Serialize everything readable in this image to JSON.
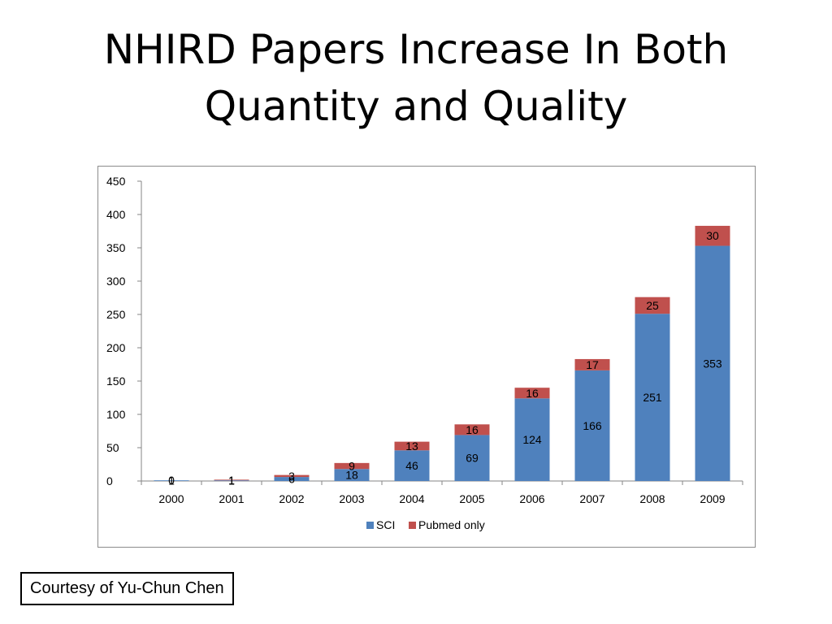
{
  "slide": {
    "title_line1": "NHIRD Papers Increase In Both",
    "title_line2": "Quantity and Quality",
    "credit": "Courtesy of Yu-Chun Chen"
  },
  "chart_data": {
    "type": "bar",
    "stacked": true,
    "title": "",
    "xlabel": "",
    "ylabel": "",
    "categories": [
      "2000",
      "2001",
      "2002",
      "2003",
      "2004",
      "2005",
      "2006",
      "2007",
      "2008",
      "2009"
    ],
    "series": [
      {
        "name": "SCI",
        "color": "#4f81bd",
        "values": [
          1,
          1,
          6,
          18,
          46,
          69,
          124,
          166,
          251,
          353
        ]
      },
      {
        "name": "Pubmed only",
        "color": "#c0504d",
        "values": [
          0,
          1,
          3,
          9,
          13,
          16,
          16,
          17,
          25,
          30
        ]
      }
    ],
    "ylim": [
      0,
      450
    ],
    "yticks": [
      0,
      50,
      100,
      150,
      200,
      250,
      300,
      350,
      400,
      450
    ],
    "grid": false,
    "legend_position": "bottom"
  }
}
